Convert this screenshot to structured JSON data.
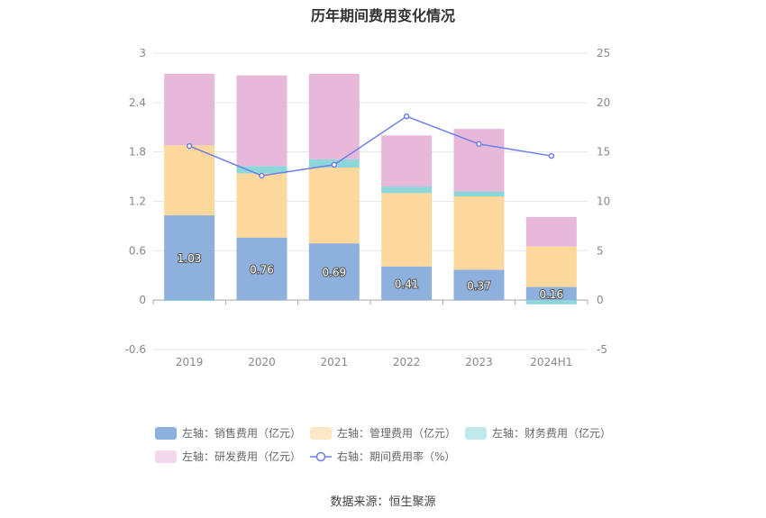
{
  "title": "历年期间费用变化情况",
  "source": "数据来源：恒生聚源",
  "chart_data": {
    "type": "bar",
    "stacked": true,
    "categories": [
      "2019",
      "2020",
      "2021",
      "2022",
      "2023",
      "2024H1"
    ],
    "left_axis": {
      "ylim": [
        -0.6,
        3
      ],
      "ticks": [
        "3",
        "2.4",
        "1.8",
        "1.2",
        "0.6",
        "0",
        "-0.6"
      ]
    },
    "right_axis": {
      "ylim": [
        -5,
        25
      ],
      "ticks": [
        "25",
        "20",
        "15",
        "10",
        "5",
        "0",
        "-5"
      ]
    },
    "grid": true,
    "legend_position": "bottom",
    "series": [
      {
        "name": "左轴：销售费用（亿元）",
        "type": "bar",
        "axis": "left",
        "color": "#8eb0dc",
        "values": [
          1.03,
          0.76,
          0.69,
          0.41,
          0.37,
          0.16
        ],
        "labels": [
          "1.03",
          "0.76",
          "0.69",
          "0.41",
          "0.37",
          "0.16"
        ]
      },
      {
        "name": "左轴：管理费用（亿元）",
        "type": "bar",
        "axis": "left",
        "color": "#fdd89c",
        "values": [
          0.85,
          0.78,
          0.92,
          0.89,
          0.89,
          0.49
        ]
      },
      {
        "name": "左轴：财务费用（亿元）",
        "type": "bar",
        "axis": "left",
        "color": "#8dd6d9",
        "values": [
          -0.01,
          0.09,
          0.1,
          0.08,
          0.06,
          -0.05
        ]
      },
      {
        "name": "左轴：研发费用（亿元）",
        "type": "bar",
        "axis": "left",
        "color": "#e8b8da",
        "values": [
          0.87,
          1.1,
          1.04,
          0.62,
          0.76,
          0.36
        ]
      },
      {
        "name": "右轴：期间费用率（%）",
        "type": "line",
        "axis": "right",
        "color": "#6e7ee8",
        "values": [
          15.6,
          12.6,
          13.7,
          18.6,
          15.8,
          14.6
        ]
      }
    ]
  }
}
